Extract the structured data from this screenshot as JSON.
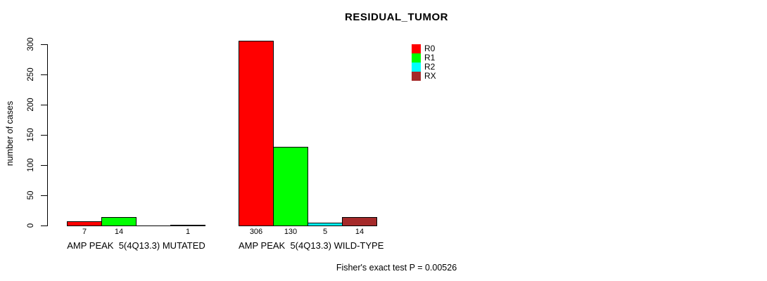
{
  "title": "RESIDUAL_TUMOR",
  "ylabel": "number of cases",
  "footer": "Fisher's exact test P = 0.00526",
  "legend": [
    {
      "label": "R0",
      "color": "#FF0000"
    },
    {
      "label": "R1",
      "color": "#00FF00"
    },
    {
      "label": "R2",
      "color": "#00FFFF"
    },
    {
      "label": "RX",
      "color": "#A52A2A"
    }
  ],
  "chart_data": {
    "type": "bar",
    "title": "RESIDUAL_TUMOR",
    "xlabel": "",
    "ylabel": "number of cases",
    "categories": [
      "AMP PEAK  5(4Q13.3) MUTATED",
      "AMP PEAK  5(4Q13.3) WILD-TYPE"
    ],
    "series": [
      {
        "name": "R0",
        "color": "#FF0000",
        "values": [
          7,
          306
        ]
      },
      {
        "name": "R1",
        "color": "#00FF00",
        "values": [
          14,
          130
        ]
      },
      {
        "name": "R2",
        "color": "#00FFFF",
        "values": [
          0,
          5
        ]
      },
      {
        "name": "RX",
        "color": "#A52A2A",
        "values": [
          1,
          14
        ]
      }
    ],
    "bar_value_labels": [
      [
        "7",
        "14",
        "",
        "1"
      ],
      [
        "306",
        "130",
        "5",
        "14"
      ]
    ],
    "yticks": [
      0,
      50,
      100,
      150,
      200,
      250,
      300
    ],
    "ylim": [
      0,
      300
    ],
    "grid": false,
    "legend_position": "top-right",
    "annotation": "Fisher's exact test P = 0.00526"
  }
}
